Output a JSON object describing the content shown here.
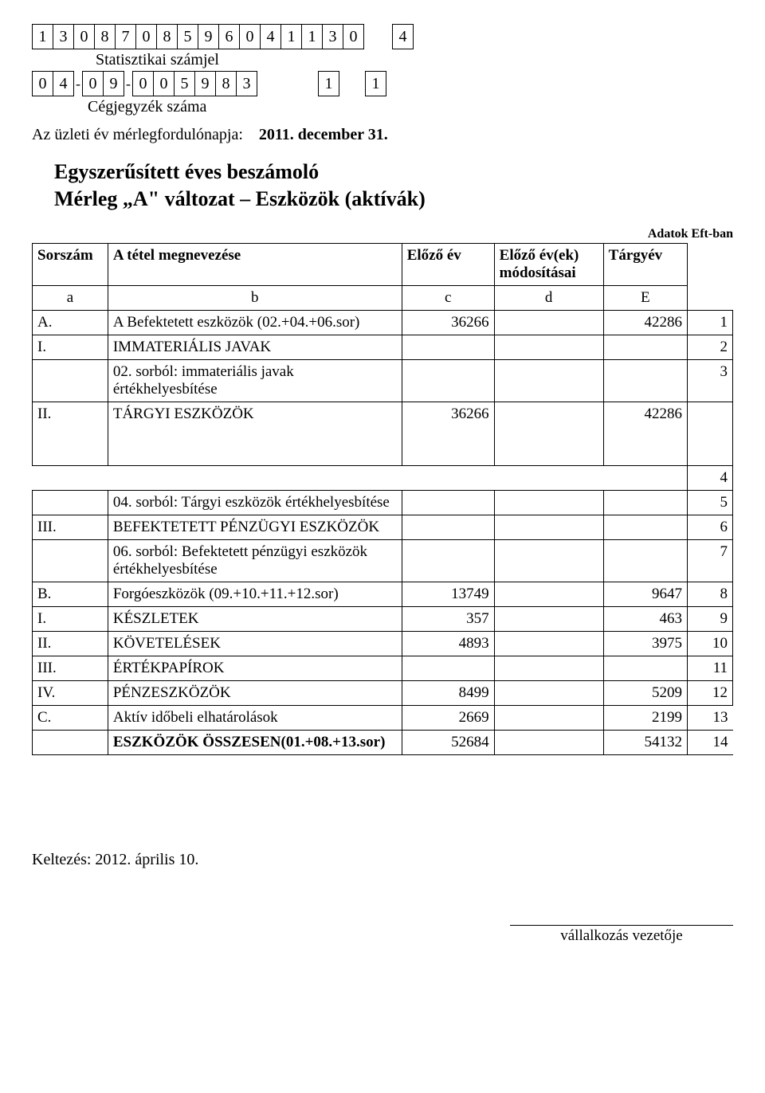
{
  "header": {
    "stat_id": [
      "1",
      "3",
      "0",
      "8",
      "7",
      "0",
      "8",
      "5",
      "9",
      "6",
      "0",
      "4",
      "1",
      "1",
      "3",
      "0"
    ],
    "stat_id_trailing": "4",
    "stat_label": "Statisztikai számjel",
    "reg_part1": [
      "0",
      "4"
    ],
    "reg_sep": "-",
    "reg_part2": [
      "0",
      "9"
    ],
    "reg_part3": [
      "0",
      "0",
      "5",
      "9",
      "8",
      "3"
    ],
    "reg_extra": [
      "1",
      "1"
    ],
    "reg_label": "Cégjegyzék száma",
    "fy_label": "Az üzleti év mérlegfordulónapja:",
    "fy_value": "2011. december 31."
  },
  "title_line1": "Egyszerűsített éves beszámoló",
  "title_line2": "Mérleg „A\" változat – Eszközök (aktívák)",
  "unit_label": "Adatok Eft-ban",
  "columns": {
    "sorszam": "Sorszám",
    "megnev": "A tétel megnevezése",
    "elozo": "Előző év",
    "elozo_mod": "Előző év(ek)\nmódosításai",
    "targyev": "Tárgyév",
    "a": "a",
    "b": "b",
    "c": "c",
    "d": "d",
    "e": "E"
  },
  "rows": [
    {
      "a": "A.",
      "b": "A Befektetett eszközök (02.+04.+06.sor)",
      "c": "36266",
      "d": "",
      "e": "42286",
      "n": "1",
      "big": true
    },
    {
      "a": "I.",
      "b": "IMMATERIÁLIS JAVAK",
      "c": "",
      "d": "",
      "e": "",
      "n": "2"
    },
    {
      "a": "",
      "b": "02. sorból: immateriális javak értékhelyesbítése",
      "c": "",
      "d": "",
      "e": "",
      "n": "3",
      "small": true
    },
    {
      "a": "II.",
      "b": "TÁRGYI ESZKÖZÖK",
      "c": "36266",
      "d": "",
      "e": "42286",
      "n": "",
      "tall": true
    },
    {
      "a": "",
      "b": "",
      "c": "",
      "d": "",
      "e": "",
      "n": "4",
      "collapse": true
    },
    {
      "a": "",
      "b": "04. sorból: Tárgyi eszközök értékhelyesbítése",
      "c": "",
      "d": "",
      "e": "",
      "n": "5",
      "small": true
    },
    {
      "a": "III.",
      "b": "BEFEKTETETT PÉNZÜGYI ESZKÖZÖK",
      "c": "",
      "d": "",
      "e": "",
      "n": "6"
    },
    {
      "a": "",
      "b": "06. sorból: Befektetett pénzügyi eszközök értékhelyesbítése",
      "c": "",
      "d": "",
      "e": "",
      "n": "7",
      "small": true
    },
    {
      "a": "B.",
      "b": "Forgóeszközök (09.+10.+11.+12.sor)",
      "c": "13749",
      "d": "",
      "e": "9647",
      "n": "8",
      "big": true
    },
    {
      "a": "I.",
      "b": "KÉSZLETEK",
      "c": "357",
      "d": "",
      "e": "463",
      "n": "9"
    },
    {
      "a": "II.",
      "b": "KÖVETELÉSEK",
      "c": "4893",
      "d": "",
      "e": "3975",
      "n": "10"
    },
    {
      "a": "III.",
      "b": "ÉRTÉKPAPÍROK",
      "c": "",
      "d": "",
      "e": "",
      "n": "11"
    },
    {
      "a": "IV.",
      "b": "PÉNZESZKÖZÖK",
      "c": "8499",
      "d": "",
      "e": "5209",
      "n": "12"
    },
    {
      "a": "C.",
      "b": "Aktív időbeli elhatárolások",
      "c": "2669",
      "d": "",
      "e": "2199",
      "n": "13",
      "big": true,
      "outerN": true
    },
    {
      "a": "",
      "b": "ESZKÖZÖK ÖSSZESEN(01.+08.+13.sor)",
      "c": "52684",
      "d": "",
      "e": "54132",
      "n": "14",
      "big": true,
      "bold": true,
      "outerN": true
    }
  ],
  "footer": {
    "date_label": "Keltezés: 2012. április 10.",
    "sig": "vállalkozás vezetője"
  }
}
